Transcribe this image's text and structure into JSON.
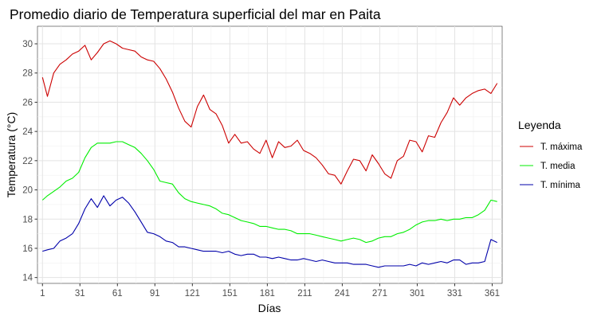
{
  "chart_data": {
    "type": "line",
    "title": "Promedio diario de Temperatura superficial del mar en Paita",
    "xlabel": "Días",
    "ylabel": "Temperatura (°C)",
    "xlim": [
      -3,
      369
    ],
    "ylim": [
      13.6,
      31.2
    ],
    "x_ticks": [
      1,
      31,
      61,
      91,
      121,
      151,
      181,
      211,
      241,
      271,
      301,
      331,
      361
    ],
    "y_ticks": [
      14,
      16,
      18,
      20,
      22,
      24,
      26,
      28,
      30
    ],
    "grid": true,
    "legend": {
      "title": "Leyenda",
      "position": "right"
    },
    "series": [
      {
        "name": "T. máxima",
        "color": "#cc0000",
        "x": [
          1,
          5,
          10,
          15,
          20,
          25,
          30,
          35,
          40,
          45,
          50,
          55,
          60,
          65,
          70,
          75,
          80,
          85,
          90,
          95,
          100,
          105,
          110,
          115,
          120,
          125,
          130,
          135,
          140,
          145,
          150,
          155,
          160,
          165,
          170,
          175,
          180,
          185,
          190,
          195,
          200,
          205,
          210,
          215,
          220,
          225,
          230,
          235,
          240,
          245,
          250,
          255,
          260,
          265,
          270,
          275,
          280,
          285,
          290,
          295,
          300,
          305,
          310,
          315,
          320,
          325,
          330,
          335,
          340,
          345,
          350,
          355,
          360,
          365
        ],
        "values": [
          27.7,
          26.4,
          28.0,
          28.6,
          28.9,
          29.3,
          29.5,
          29.9,
          28.9,
          29.4,
          30.0,
          30.2,
          30.0,
          29.7,
          29.6,
          29.5,
          29.1,
          28.9,
          28.8,
          28.3,
          27.6,
          26.7,
          25.6,
          24.7,
          24.3,
          25.7,
          26.5,
          25.5,
          25.2,
          24.4,
          23.2,
          23.8,
          23.2,
          23.3,
          22.8,
          22.5,
          23.4,
          22.2,
          23.3,
          22.9,
          23.0,
          23.4,
          22.7,
          22.5,
          22.2,
          21.7,
          21.1,
          21.0,
          20.4,
          21.3,
          22.1,
          22.0,
          21.3,
          22.4,
          21.8,
          21.1,
          20.8,
          22.0,
          22.3,
          23.4,
          23.3,
          22.6,
          23.7,
          23.6,
          24.6,
          25.3,
          26.3,
          25.8,
          26.3,
          26.6,
          26.8,
          26.9,
          26.6,
          27.3
        ]
      },
      {
        "name": "T. media",
        "color": "#00ee00",
        "x": [
          1,
          5,
          10,
          15,
          20,
          25,
          30,
          35,
          40,
          45,
          50,
          55,
          60,
          65,
          70,
          75,
          80,
          85,
          90,
          95,
          100,
          105,
          110,
          115,
          120,
          125,
          130,
          135,
          140,
          145,
          150,
          155,
          160,
          165,
          170,
          175,
          180,
          185,
          190,
          195,
          200,
          205,
          210,
          215,
          220,
          225,
          230,
          235,
          240,
          245,
          250,
          255,
          260,
          265,
          270,
          275,
          280,
          285,
          290,
          295,
          300,
          305,
          310,
          315,
          320,
          325,
          330,
          335,
          340,
          345,
          350,
          355,
          360,
          365
        ],
        "values": [
          19.3,
          19.6,
          19.9,
          20.2,
          20.6,
          20.8,
          21.2,
          22.2,
          22.9,
          23.2,
          23.2,
          23.2,
          23.3,
          23.3,
          23.1,
          22.9,
          22.5,
          22.0,
          21.4,
          20.6,
          20.5,
          20.4,
          19.8,
          19.4,
          19.2,
          19.1,
          19.0,
          18.9,
          18.7,
          18.4,
          18.3,
          18.1,
          17.9,
          17.8,
          17.7,
          17.5,
          17.5,
          17.4,
          17.3,
          17.3,
          17.2,
          17.0,
          17.0,
          17.0,
          16.9,
          16.8,
          16.7,
          16.6,
          16.5,
          16.6,
          16.7,
          16.6,
          16.4,
          16.5,
          16.7,
          16.8,
          16.8,
          17.0,
          17.1,
          17.3,
          17.6,
          17.8,
          17.9,
          17.9,
          18.0,
          17.9,
          18.0,
          18.0,
          18.1,
          18.1,
          18.3,
          18.6,
          19.3,
          19.2
        ]
      },
      {
        "name": "T. mínima",
        "color": "#0000aa",
        "x": [
          1,
          5,
          10,
          15,
          20,
          25,
          30,
          35,
          40,
          45,
          50,
          55,
          60,
          65,
          70,
          75,
          80,
          85,
          90,
          95,
          100,
          105,
          110,
          115,
          120,
          125,
          130,
          135,
          140,
          145,
          150,
          155,
          160,
          165,
          170,
          175,
          180,
          185,
          190,
          195,
          200,
          205,
          210,
          215,
          220,
          225,
          230,
          235,
          240,
          245,
          250,
          255,
          260,
          265,
          270,
          275,
          280,
          285,
          290,
          295,
          300,
          305,
          310,
          315,
          320,
          325,
          330,
          335,
          340,
          345,
          350,
          355,
          360,
          365
        ],
        "values": [
          15.8,
          15.9,
          16.0,
          16.5,
          16.7,
          17.0,
          17.7,
          18.7,
          19.4,
          18.8,
          19.6,
          18.9,
          19.3,
          19.5,
          19.1,
          18.5,
          17.8,
          17.1,
          17.0,
          16.8,
          16.5,
          16.4,
          16.1,
          16.1,
          16.0,
          15.9,
          15.8,
          15.8,
          15.8,
          15.7,
          15.8,
          15.6,
          15.5,
          15.6,
          15.6,
          15.4,
          15.4,
          15.3,
          15.4,
          15.3,
          15.2,
          15.2,
          15.3,
          15.2,
          15.1,
          15.2,
          15.1,
          15.0,
          15.0,
          15.0,
          14.9,
          14.9,
          14.9,
          14.8,
          14.7,
          14.8,
          14.8,
          14.8,
          14.8,
          14.9,
          14.8,
          15.0,
          14.9,
          15.0,
          15.1,
          15.0,
          15.2,
          15.2,
          14.9,
          15.0,
          15.0,
          15.1,
          16.6,
          16.4
        ]
      }
    ]
  }
}
